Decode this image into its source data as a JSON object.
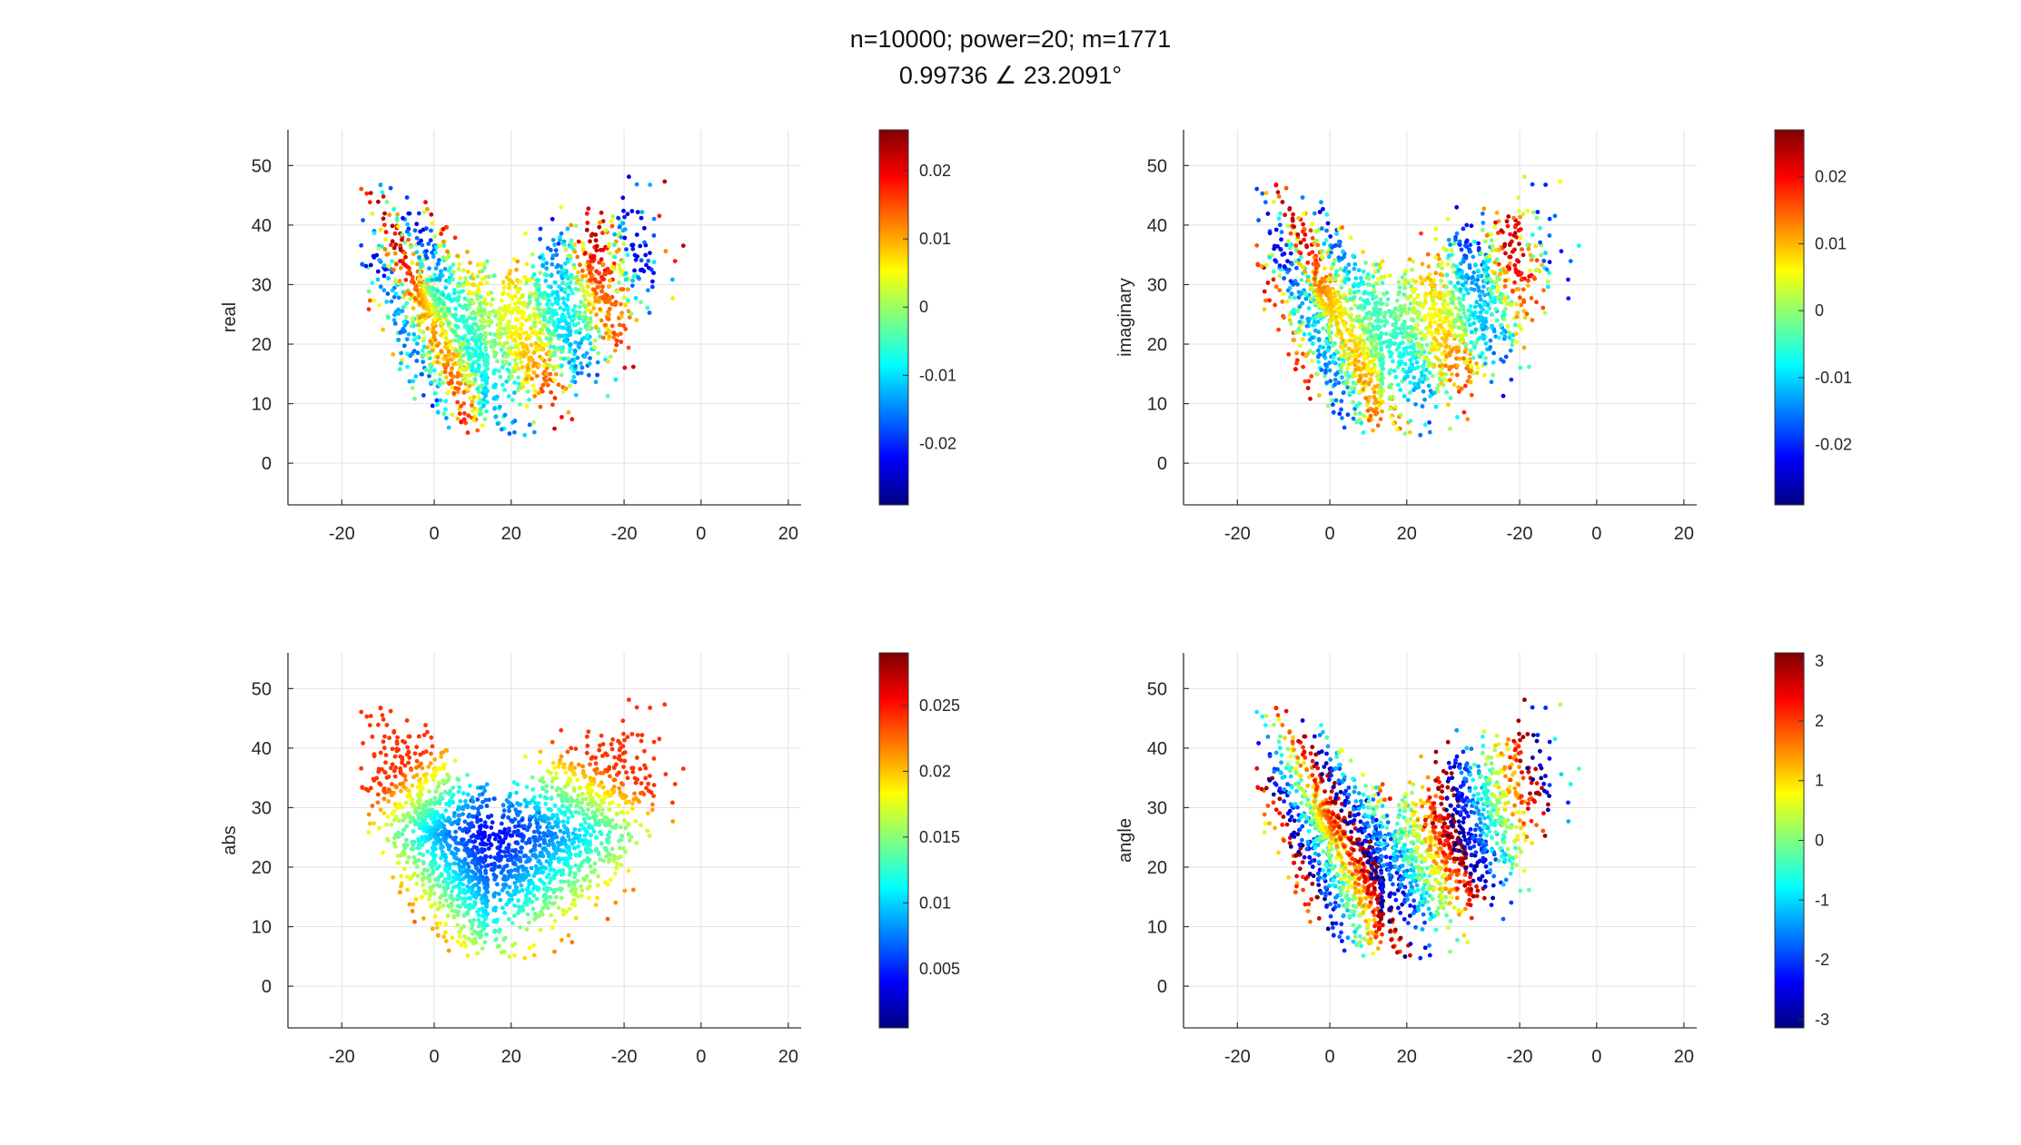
{
  "figure": {
    "title_line1": "n=10000; power=20; m=1771",
    "title_line2": "0.99736 ∠ 23.2091°"
  },
  "colormap": "jet",
  "chart_data": [
    {
      "type": "scatter",
      "ylabel": "real",
      "xticklabels": [
        "-20",
        "0",
        "20",
        "-20",
        "0",
        "20"
      ],
      "yticks": [
        0,
        10,
        20,
        30,
        40,
        50
      ],
      "ylim": [
        -7,
        56
      ],
      "grid": true,
      "colorbar": {
        "range": [
          -0.029,
          0.026
        ],
        "ticks": [
          -0.02,
          -0.01,
          0,
          0.01,
          0.02
        ],
        "ticklabels": [
          "-0.02",
          "-0.01",
          "0",
          "0.01",
          "0.02"
        ]
      },
      "points_summary": "Lorenz butterfly attractor, two lobes with holes centred near y=28, values oscillate between about -0.029 and 0.026"
    },
    {
      "type": "scatter",
      "ylabel": "imaginary",
      "xticklabels": [
        "-20",
        "0",
        "20",
        "-20",
        "0",
        "20"
      ],
      "yticks": [
        0,
        10,
        20,
        30,
        40,
        50
      ],
      "ylim": [
        -7,
        56
      ],
      "grid": true,
      "colorbar": {
        "range": [
          -0.029,
          0.027
        ],
        "ticks": [
          -0.02,
          -0.01,
          0,
          0.01,
          0.02
        ],
        "ticklabels": [
          "-0.02",
          "-0.01",
          "0",
          "0.01",
          "0.02"
        ]
      },
      "points_summary": "Lorenz butterfly attractor, oscillating imaginary part between about -0.029 and 0.027"
    },
    {
      "type": "scatter",
      "ylabel": "abs",
      "xticklabels": [
        "-20",
        "0",
        "20",
        "-20",
        "0",
        "20"
      ],
      "yticks": [
        0,
        10,
        20,
        30,
        40,
        50
      ],
      "ylim": [
        -7,
        56
      ],
      "grid": true,
      "colorbar": {
        "range": [
          0.0005,
          0.029
        ],
        "ticks": [
          0.005,
          0.01,
          0.015,
          0.02,
          0.025
        ],
        "ticklabels": [
          "0.005",
          "0.01",
          "0.015",
          "0.02",
          "0.025"
        ]
      },
      "points_summary": "Magnitude low near lobe centres, higher on outer rings"
    },
    {
      "type": "scatter",
      "ylabel": "angle",
      "xticklabels": [
        "-20",
        "0",
        "20",
        "-20",
        "0",
        "20"
      ],
      "yticks": [
        0,
        10,
        20,
        30,
        40,
        50
      ],
      "ylim": [
        -7,
        56
      ],
      "grid": true,
      "colorbar": {
        "range": [
          -3.14,
          3.14
        ],
        "ticks": [
          -3,
          -2,
          -1,
          0,
          1,
          2,
          3
        ],
        "ticklabels": [
          "-3",
          "-2",
          "-1",
          "0",
          "1",
          "2",
          "3"
        ]
      },
      "points_summary": "Phase angle wraps from -pi to pi across the attractor"
    }
  ]
}
